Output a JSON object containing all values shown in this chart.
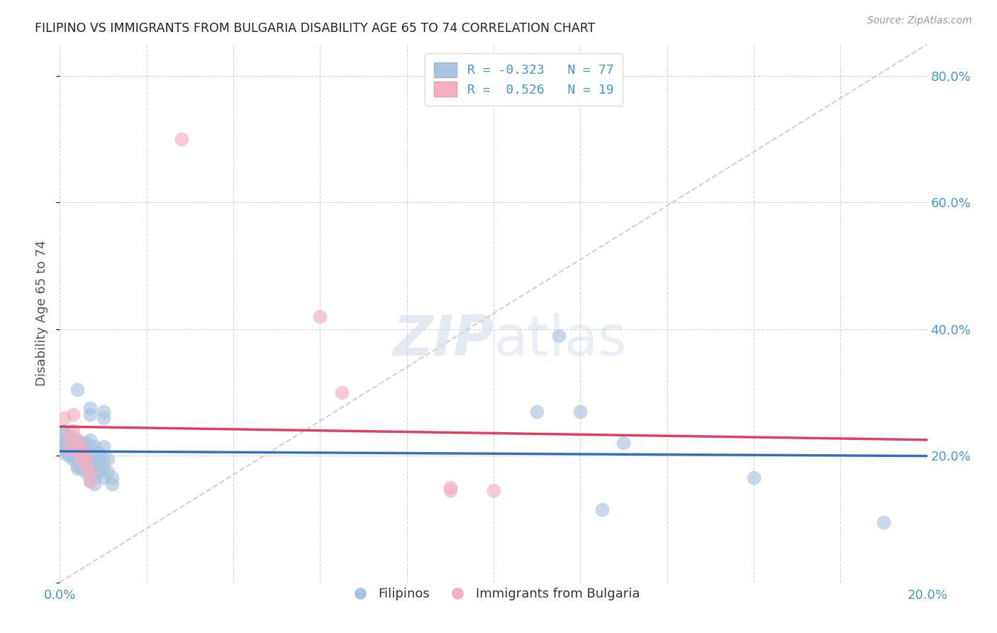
{
  "title": "FILIPINO VS IMMIGRANTS FROM BULGARIA DISABILITY AGE 65 TO 74 CORRELATION CHART",
  "source": "Source: ZipAtlas.com",
  "ylabel": "Disability Age 65 to 74",
  "xlim": [
    0.0,
    0.2
  ],
  "ylim": [
    0.0,
    0.85
  ],
  "y_ticks": [
    0.0,
    0.2,
    0.4,
    0.6,
    0.8
  ],
  "y_tick_labels": [
    "",
    "20.0%",
    "40.0%",
    "60.0%",
    "80.0%"
  ],
  "blue_color": "#a8c4e0",
  "pink_color": "#f4afc0",
  "blue_line_color": "#3570b8",
  "pink_line_color": "#e04060",
  "dashed_line_color": "#c8c8c8",
  "legend_blue_label": "R = -0.323   N = 77",
  "legend_pink_label": "R =  0.526   N = 19",
  "filipinos_label": "Filipinos",
  "bulgaria_label": "Immigrants from Bulgaria",
  "blue_scatter": [
    [
      0.001,
      0.235
    ],
    [
      0.001,
      0.225
    ],
    [
      0.001,
      0.24
    ],
    [
      0.001,
      0.215
    ],
    [
      0.001,
      0.21
    ],
    [
      0.001,
      0.22
    ],
    [
      0.001,
      0.205
    ],
    [
      0.001,
      0.215
    ],
    [
      0.002,
      0.23
    ],
    [
      0.002,
      0.22
    ],
    [
      0.002,
      0.225
    ],
    [
      0.002,
      0.215
    ],
    [
      0.002,
      0.21
    ],
    [
      0.002,
      0.205
    ],
    [
      0.002,
      0.2
    ],
    [
      0.003,
      0.23
    ],
    [
      0.003,
      0.225
    ],
    [
      0.003,
      0.215
    ],
    [
      0.003,
      0.21
    ],
    [
      0.003,
      0.205
    ],
    [
      0.003,
      0.2
    ],
    [
      0.003,
      0.195
    ],
    [
      0.004,
      0.305
    ],
    [
      0.004,
      0.225
    ],
    [
      0.004,
      0.215
    ],
    [
      0.004,
      0.2
    ],
    [
      0.004,
      0.195
    ],
    [
      0.004,
      0.185
    ],
    [
      0.004,
      0.18
    ],
    [
      0.005,
      0.22
    ],
    [
      0.005,
      0.21
    ],
    [
      0.005,
      0.2
    ],
    [
      0.005,
      0.19
    ],
    [
      0.005,
      0.185
    ],
    [
      0.005,
      0.18
    ],
    [
      0.006,
      0.22
    ],
    [
      0.006,
      0.215
    ],
    [
      0.006,
      0.21
    ],
    [
      0.006,
      0.2
    ],
    [
      0.006,
      0.195
    ],
    [
      0.006,
      0.185
    ],
    [
      0.006,
      0.175
    ],
    [
      0.007,
      0.275
    ],
    [
      0.007,
      0.265
    ],
    [
      0.007,
      0.225
    ],
    [
      0.007,
      0.215
    ],
    [
      0.007,
      0.2
    ],
    [
      0.007,
      0.185
    ],
    [
      0.007,
      0.17
    ],
    [
      0.007,
      0.16
    ],
    [
      0.008,
      0.215
    ],
    [
      0.008,
      0.2
    ],
    [
      0.008,
      0.19
    ],
    [
      0.008,
      0.175
    ],
    [
      0.008,
      0.165
    ],
    [
      0.008,
      0.155
    ],
    [
      0.009,
      0.205
    ],
    [
      0.009,
      0.195
    ],
    [
      0.009,
      0.185
    ],
    [
      0.009,
      0.175
    ],
    [
      0.01,
      0.27
    ],
    [
      0.01,
      0.26
    ],
    [
      0.01,
      0.215
    ],
    [
      0.01,
      0.195
    ],
    [
      0.01,
      0.18
    ],
    [
      0.01,
      0.165
    ],
    [
      0.011,
      0.195
    ],
    [
      0.011,
      0.175
    ],
    [
      0.012,
      0.165
    ],
    [
      0.012,
      0.155
    ],
    [
      0.11,
      0.27
    ],
    [
      0.115,
      0.39
    ],
    [
      0.12,
      0.27
    ],
    [
      0.125,
      0.115
    ],
    [
      0.13,
      0.22
    ],
    [
      0.16,
      0.165
    ],
    [
      0.19,
      0.095
    ]
  ],
  "pink_scatter": [
    [
      0.001,
      0.26
    ],
    [
      0.002,
      0.23
    ],
    [
      0.002,
      0.21
    ],
    [
      0.003,
      0.265
    ],
    [
      0.003,
      0.24
    ],
    [
      0.004,
      0.225
    ],
    [
      0.004,
      0.21
    ],
    [
      0.005,
      0.21
    ],
    [
      0.005,
      0.195
    ],
    [
      0.006,
      0.2
    ],
    [
      0.006,
      0.185
    ],
    [
      0.007,
      0.175
    ],
    [
      0.007,
      0.16
    ],
    [
      0.028,
      0.7
    ],
    [
      0.06,
      0.42
    ],
    [
      0.065,
      0.3
    ],
    [
      0.09,
      0.15
    ],
    [
      0.09,
      0.145
    ],
    [
      0.1,
      0.145
    ]
  ]
}
